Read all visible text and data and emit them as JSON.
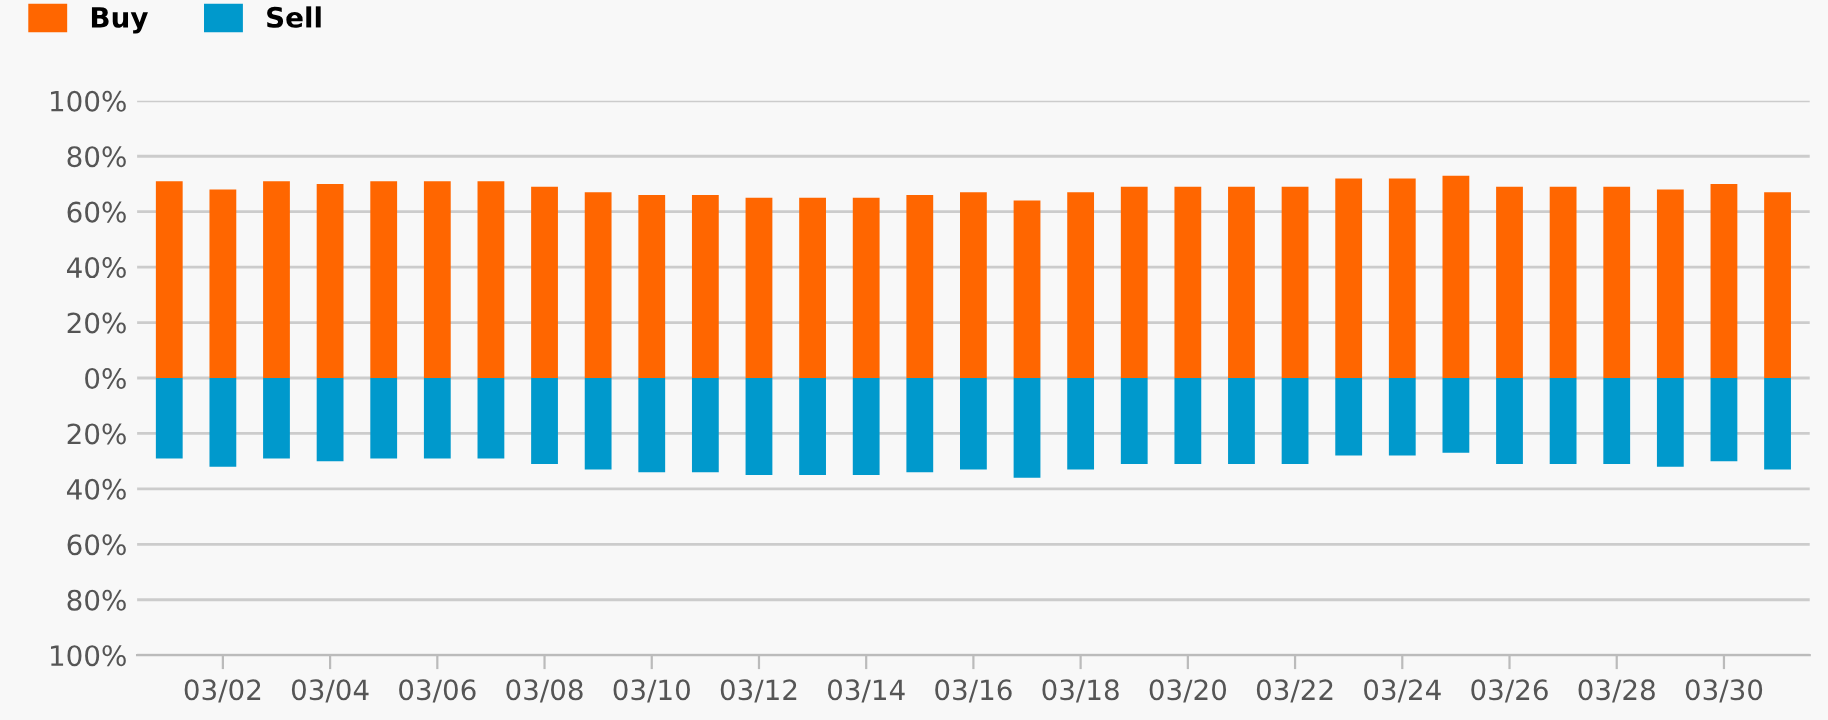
{
  "chart_data": {
    "type": "bar",
    "categories": [
      null,
      "03/02",
      null,
      "03/04",
      null,
      "03/06",
      null,
      "03/08",
      null,
      "03/10",
      null,
      "03/12",
      null,
      "03/14",
      null,
      "03/16",
      null,
      "03/18",
      null,
      "03/20",
      null,
      "03/22",
      null,
      "03/24",
      null,
      "03/26",
      null,
      "03/28",
      null,
      "03/30",
      null
    ],
    "series": [
      {
        "name": "Buy",
        "color": "#ff6600",
        "values": [
          71,
          68,
          71,
          70,
          71,
          71,
          71,
          69,
          67,
          66,
          66,
          65,
          65,
          65,
          66,
          67,
          64,
          67,
          69,
          69,
          69,
          69,
          72,
          72,
          73,
          69,
          69,
          69,
          68,
          70,
          67
        ]
      },
      {
        "name": "Sell",
        "color": "#0099cc",
        "values": [
          -29,
          -32,
          -29,
          -30,
          -29,
          -29,
          -29,
          -31,
          -33,
          -34,
          -34,
          -35,
          -35,
          -35,
          -34,
          -33,
          -36,
          -33,
          -31,
          -31,
          -31,
          -31,
          -28,
          -28,
          -27,
          -31,
          -31,
          -31,
          -32,
          -30,
          -33
        ]
      }
    ],
    "ylim": [
      -100,
      100
    ],
    "yticks": [
      {
        "value": -100,
        "label": "100%"
      },
      {
        "value": -80,
        "label": "80%"
      },
      {
        "value": -60,
        "label": "60%"
      },
      {
        "value": -40,
        "label": "40%"
      },
      {
        "value": -20,
        "label": "20%"
      },
      {
        "value": 0,
        "label": "0%"
      },
      {
        "value": 20,
        "label": "20%"
      },
      {
        "value": 40,
        "label": "40%"
      },
      {
        "value": 60,
        "label": "60%"
      },
      {
        "value": 80,
        "label": "80%"
      },
      {
        "value": 100,
        "label": "100%"
      }
    ],
    "stacked": true,
    "grid": "y",
    "legend": "top left"
  }
}
